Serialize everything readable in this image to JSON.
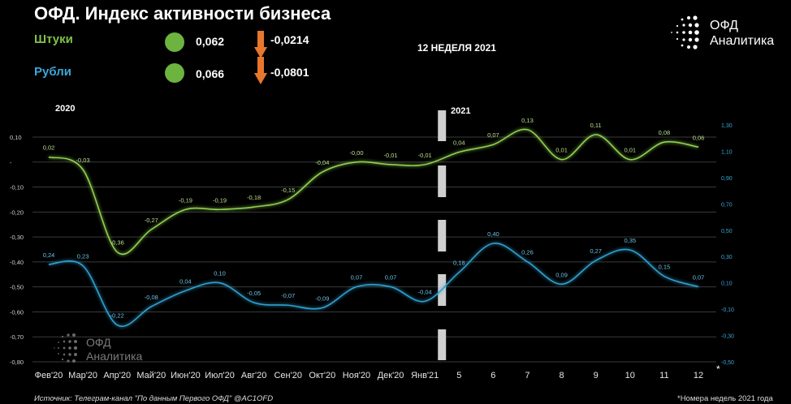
{
  "header": {
    "title": "ОФД. Индекс активности бизнеса",
    "week_label": "12 НЕДЕЛЯ 2021"
  },
  "legend": {
    "items": [
      {
        "label": "Штуки",
        "value": "0,062",
        "change": "-0,0214",
        "label_color": "#7fc24a",
        "change_direction": "down"
      },
      {
        "label": "Рубли",
        "value": "0,066",
        "change": "-0,0801",
        "label_color": "#3aa6d8",
        "change_direction": "down"
      }
    ]
  },
  "logo": {
    "line1": "ОФД",
    "line2": "Аналитика"
  },
  "watermark": {
    "line1": "ОФД",
    "line2": "Аналитика"
  },
  "year_labels": {
    "y2020": "2020",
    "y2021": "2021"
  },
  "footer": {
    "source": "Источник: Телеграм-канал \"По данным Первого ОФД\" @AC1OFD",
    "footnote": "*Номера недель 2021 года",
    "asterisk": "*"
  },
  "chart_data": {
    "type": "line",
    "categories": [
      "Фев'20",
      "Мар'20",
      "Апр'20",
      "Май'20",
      "Июн'20",
      "Июл'20",
      "Авг'20",
      "Сен'20",
      "Окт'20",
      "Ноя'20",
      "Дек'20",
      "Янв'21",
      "5",
      "6",
      "7",
      "8",
      "9",
      "10",
      "11",
      "12"
    ],
    "left_axis": {
      "ticks": [
        "0,10",
        "-",
        "-0,10",
        "-0,20",
        "-0,30",
        "-0,40",
        "-0,50",
        "-0,60",
        "-0,70",
        "-0,80"
      ],
      "ylim": [
        -0.8,
        0.1
      ]
    },
    "right_axis": {
      "ticks": [
        "1,30",
        "1,10",
        "0,90",
        "0,70",
        "0,50",
        "0,30",
        "0,10",
        "-0,10",
        "-0,30",
        "-0,50"
      ],
      "ylim": [
        -0.5,
        1.3
      ]
    },
    "grid": true,
    "series": [
      {
        "axis": "left",
        "color": "#8fd14f",
        "values": [
          0.02,
          -0.03,
          -0.36,
          -0.27,
          -0.19,
          -0.19,
          -0.18,
          -0.15,
          -0.04,
          -0.0,
          -0.01,
          -0.01,
          0.04,
          0.07,
          0.13,
          0.01,
          0.11,
          0.01,
          0.08,
          0.06
        ],
        "data_labels": [
          "0,02",
          "-0,03",
          "-0,36",
          "-0,27",
          "-0,19",
          "-0,19",
          "-0,18",
          "-0,15",
          "-0,04",
          "-0,00",
          "-0,01",
          "-0,01",
          "0,04",
          "0,07",
          "0,13",
          "0,01",
          "0,11",
          "0,01",
          "0,08",
          "0,06"
        ]
      },
      {
        "axis": "right",
        "color": "#2fa0d0",
        "values": [
          0.24,
          0.23,
          -0.22,
          -0.08,
          0.04,
          0.1,
          -0.05,
          -0.07,
          -0.09,
          0.07,
          0.07,
          -0.04,
          0.18,
          0.4,
          0.26,
          0.09,
          0.27,
          0.35,
          0.15,
          0.07
        ],
        "data_labels": [
          "0,24",
          "0,23",
          "-0,22",
          "-0,08",
          "0,04",
          "0,10",
          "-0,05",
          "-0,07",
          "-0,09",
          "0,07",
          "0,07",
          "-0,04",
          "0,18",
          "0,40",
          "0,26",
          "0,09",
          "0,27",
          "0,35",
          "0,15",
          "0,07"
        ]
      }
    ]
  }
}
